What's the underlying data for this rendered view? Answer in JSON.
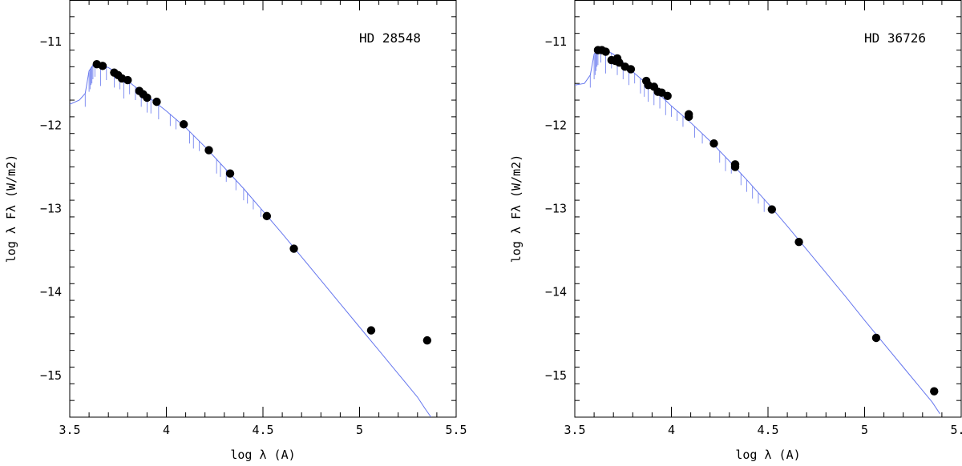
{
  "chart_data": [
    {
      "type": "scatter",
      "title": "HD 28548",
      "xlabel": "log λ (A)",
      "ylabel": "log λ Fλ (W/m2)",
      "xlim": [
        3.5,
        5.5
      ],
      "ylim": [
        -15.5,
        -10.5
      ],
      "xticks": [
        "3.5",
        "4",
        "4.5",
        "5",
        "5.5"
      ],
      "yticks": [
        "−11",
        "−12",
        "−13",
        "−14",
        "−15"
      ],
      "grid": false,
      "series": [
        {
          "kind": "points",
          "color": "#000000",
          "points": [
            [
              3.64,
              -11.27
            ],
            [
              3.67,
              -11.29
            ],
            [
              3.73,
              -11.37
            ],
            [
              3.75,
              -11.4
            ],
            [
              3.77,
              -11.44
            ],
            [
              3.8,
              -11.46
            ],
            [
              3.86,
              -11.59
            ],
            [
              3.88,
              -11.63
            ],
            [
              3.9,
              -11.67
            ],
            [
              3.95,
              -11.72
            ],
            [
              4.09,
              -11.99
            ],
            [
              4.22,
              -12.3
            ],
            [
              4.33,
              -12.58
            ],
            [
              4.52,
              -13.09
            ],
            [
              4.66,
              -13.48
            ],
            [
              5.06,
              -14.46
            ],
            [
              5.35,
              -14.58
            ]
          ]
        },
        {
          "kind": "model",
          "color": "#6677ee",
          "points": [
            [
              3.5,
              -11.75
            ],
            [
              3.55,
              -11.7
            ],
            [
              3.58,
              -11.62
            ],
            [
              3.6,
              -11.35
            ],
            [
              3.62,
              -11.28
            ],
            [
              3.65,
              -11.27
            ],
            [
              3.7,
              -11.31
            ],
            [
              3.75,
              -11.38
            ],
            [
              3.8,
              -11.47
            ],
            [
              3.85,
              -11.56
            ],
            [
              3.9,
              -11.65
            ],
            [
              3.95,
              -11.74
            ],
            [
              4.0,
              -11.83
            ],
            [
              4.1,
              -12.03
            ],
            [
              4.2,
              -12.26
            ],
            [
              4.3,
              -12.51
            ],
            [
              4.4,
              -12.76
            ],
            [
              4.5,
              -13.03
            ],
            [
              4.6,
              -13.3
            ],
            [
              4.7,
              -13.58
            ],
            [
              4.8,
              -13.86
            ],
            [
              4.9,
              -14.14
            ],
            [
              5.0,
              -14.42
            ],
            [
              5.1,
              -14.7
            ],
            [
              5.2,
              -14.98
            ],
            [
              5.3,
              -15.26
            ],
            [
              5.34,
              -15.4
            ],
            [
              5.37,
              -15.5
            ]
          ],
          "absorption_lines": [
            [
              3.58,
              -11.62,
              -11.78
            ],
            [
              3.6,
              -11.35,
              -11.6
            ],
            [
              3.605,
              -11.33,
              -11.57
            ],
            [
              3.61,
              -11.31,
              -11.52
            ],
            [
              3.615,
              -11.3,
              -11.5
            ],
            [
              3.62,
              -11.28,
              -11.45
            ],
            [
              3.63,
              -11.28,
              -11.42
            ],
            [
              3.66,
              -11.28,
              -11.53
            ],
            [
              3.69,
              -11.3,
              -11.46
            ],
            [
              3.73,
              -11.36,
              -11.55
            ],
            [
              3.76,
              -11.41,
              -11.57
            ],
            [
              3.78,
              -11.44,
              -11.68
            ],
            [
              3.81,
              -11.48,
              -11.63
            ],
            [
              3.84,
              -11.54,
              -11.7
            ],
            [
              3.87,
              -11.6,
              -11.78
            ],
            [
              3.9,
              -11.65,
              -11.85
            ],
            [
              3.92,
              -11.69,
              -11.86
            ],
            [
              3.96,
              -11.76,
              -11.93
            ],
            [
              4.02,
              -11.87,
              -12.01
            ],
            [
              4.05,
              -11.93,
              -12.05
            ],
            [
              4.12,
              -12.07,
              -12.22
            ],
            [
              4.14,
              -12.12,
              -12.28
            ],
            [
              4.17,
              -12.19,
              -12.31
            ],
            [
              4.26,
              -12.4,
              -12.58
            ],
            [
              4.28,
              -12.46,
              -12.62
            ],
            [
              4.31,
              -12.53,
              -12.68
            ],
            [
              4.36,
              -12.66,
              -12.78
            ],
            [
              4.4,
              -12.76,
              -12.9
            ],
            [
              4.42,
              -12.81,
              -12.94
            ],
            [
              4.45,
              -12.89,
              -13.01
            ],
            [
              4.49,
              -13.0,
              -13.1
            ]
          ]
        }
      ]
    },
    {
      "type": "scatter",
      "title": "HD 36726",
      "xlabel": "log λ (A)",
      "ylabel": "log λ Fλ (W/m2)",
      "xlim": [
        3.5,
        5.5
      ],
      "ylim": [
        -15.5,
        -10.5
      ],
      "xticks": [
        "3.5",
        "4",
        "4.5",
        "5",
        "5.5"
      ],
      "yticks": [
        "−11",
        "−12",
        "−13",
        "−14",
        "−15"
      ],
      "grid": false,
      "series": [
        {
          "kind": "points",
          "color": "#000000",
          "points": [
            [
              3.62,
              -11.1
            ],
            [
              3.64,
              -11.1
            ],
            [
              3.66,
              -11.12
            ],
            [
              3.69,
              -11.22
            ],
            [
              3.71,
              -11.23
            ],
            [
              3.72,
              -11.2
            ],
            [
              3.73,
              -11.25
            ],
            [
              3.76,
              -11.3
            ],
            [
              3.79,
              -11.33
            ],
            [
              3.87,
              -11.47
            ],
            [
              3.88,
              -11.52
            ],
            [
              3.91,
              -11.54
            ],
            [
              3.93,
              -11.6
            ],
            [
              3.95,
              -11.61
            ],
            [
              3.98,
              -11.65
            ],
            [
              4.09,
              -11.87
            ],
            [
              4.09,
              -11.9
            ],
            [
              4.22,
              -12.22
            ],
            [
              4.33,
              -12.47
            ],
            [
              4.33,
              -12.5
            ],
            [
              4.52,
              -13.01
            ],
            [
              4.66,
              -13.4
            ],
            [
              5.06,
              -14.55
            ],
            [
              5.36,
              -15.19
            ]
          ]
        },
        {
          "kind": "model",
          "color": "#6677ee",
          "points": [
            [
              3.5,
              -11.52
            ],
            [
              3.55,
              -11.5
            ],
            [
              3.58,
              -11.4
            ],
            [
              3.6,
              -11.15
            ],
            [
              3.62,
              -11.08
            ],
            [
              3.65,
              -11.09
            ],
            [
              3.7,
              -11.15
            ],
            [
              3.75,
              -11.25
            ],
            [
              3.8,
              -11.36
            ],
            [
              3.85,
              -11.46
            ],
            [
              3.9,
              -11.56
            ],
            [
              3.95,
              -11.66
            ],
            [
              4.0,
              -11.77
            ],
            [
              4.1,
              -11.97
            ],
            [
              4.2,
              -12.19
            ],
            [
              4.3,
              -12.43
            ],
            [
              4.4,
              -12.68
            ],
            [
              4.5,
              -12.94
            ],
            [
              4.6,
              -13.21
            ],
            [
              4.7,
              -13.49
            ],
            [
              4.8,
              -13.77
            ],
            [
              4.9,
              -14.05
            ],
            [
              5.0,
              -14.34
            ],
            [
              5.1,
              -14.62
            ],
            [
              5.2,
              -14.9
            ],
            [
              5.3,
              -15.18
            ],
            [
              5.35,
              -15.32
            ],
            [
              5.39,
              -15.46
            ]
          ],
          "absorption_lines": [
            [
              3.58,
              -11.4,
              -11.55
            ],
            [
              3.6,
              -11.15,
              -11.45
            ],
            [
              3.605,
              -11.13,
              -11.4
            ],
            [
              3.61,
              -11.11,
              -11.35
            ],
            [
              3.615,
              -11.1,
              -11.3
            ],
            [
              3.62,
              -11.08,
              -11.28
            ],
            [
              3.635,
              -11.08,
              -11.25
            ],
            [
              3.66,
              -11.09,
              -11.38
            ],
            [
              3.69,
              -11.13,
              -11.32
            ],
            [
              3.72,
              -11.19,
              -11.4
            ],
            [
              3.75,
              -11.25,
              -11.45
            ],
            [
              3.78,
              -11.31,
              -11.52
            ],
            [
              3.81,
              -11.38,
              -11.5
            ],
            [
              3.84,
              -11.44,
              -11.62
            ],
            [
              3.86,
              -11.48,
              -11.66
            ],
            [
              3.88,
              -11.52,
              -11.72
            ],
            [
              3.91,
              -11.58,
              -11.76
            ],
            [
              3.94,
              -11.64,
              -11.8
            ],
            [
              3.97,
              -11.7,
              -11.88
            ],
            [
              4.0,
              -11.77,
              -11.9
            ],
            [
              4.03,
              -11.83,
              -11.95
            ],
            [
              4.06,
              -11.89,
              -12.02
            ],
            [
              4.12,
              -12.01,
              -12.15
            ],
            [
              4.16,
              -12.1,
              -12.22
            ],
            [
              4.25,
              -12.31,
              -12.45
            ],
            [
              4.28,
              -12.38,
              -12.55
            ],
            [
              4.31,
              -12.45,
              -12.58
            ],
            [
              4.36,
              -12.58,
              -12.72
            ],
            [
              4.39,
              -12.65,
              -12.8
            ],
            [
              4.42,
              -12.73,
              -12.88
            ],
            [
              4.45,
              -12.81,
              -12.94
            ],
            [
              4.48,
              -12.89,
              -13.04
            ]
          ]
        }
      ]
    }
  ]
}
